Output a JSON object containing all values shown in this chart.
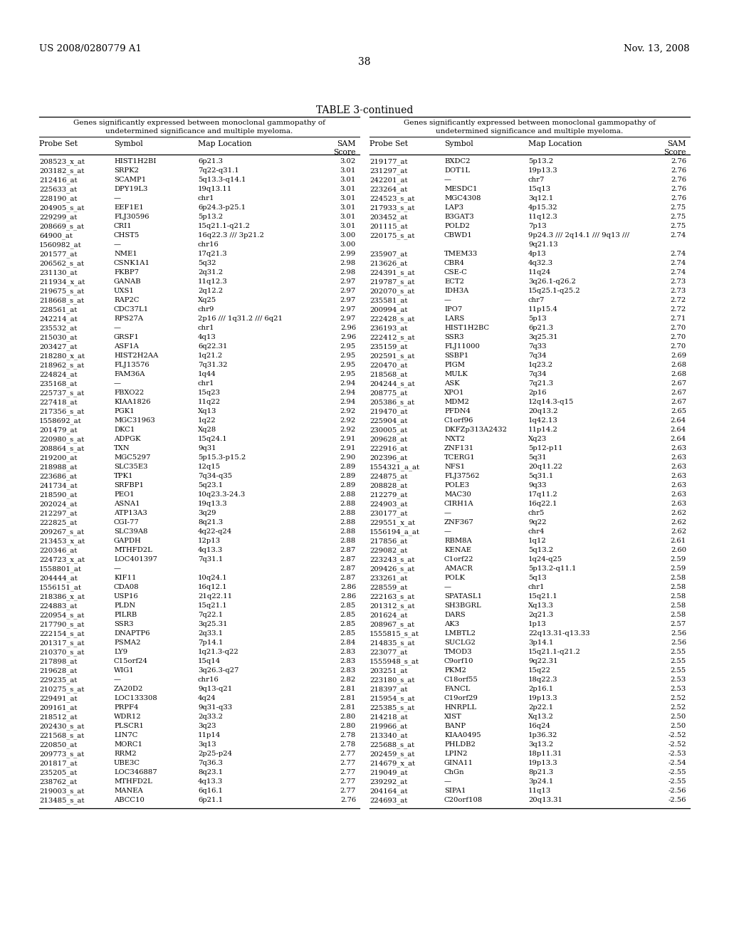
{
  "header_left": "US 2008/0280779 A1",
  "header_right": "Nov. 13, 2008",
  "page_number": "38",
  "table_title": "TABLE 3-continued",
  "col_headers": [
    "Probe Set",
    "Symbol",
    "Map Location",
    "SAM\nScore"
  ],
  "left_subtitle_line1": "Genes significantly expressed between monoclonal gammopathy of",
  "left_subtitle_line2": "undetermined significance and multiple myeloma.",
  "right_subtitle_line1": "Genes significantly expressed between monoclonal gammopathy of",
  "right_subtitle_line2": "undetermined significance and multiple myeloma.",
  "left_data": [
    [
      "208523_x_at",
      "HIST1H2BI",
      "6p21.3",
      "3.02"
    ],
    [
      "203182_s_at",
      "SRPK2",
      "7q22-q31.1",
      "3.01"
    ],
    [
      "212416_at",
      "SCAMP1",
      "5q13.3-q14.1",
      "3.01"
    ],
    [
      "225633_at",
      "DPY19L3",
      "19q13.11",
      "3.01"
    ],
    [
      "228190_at",
      "—",
      "chr1",
      "3.01"
    ],
    [
      "204905_s_at",
      "EEF1E1",
      "6p24.3-p25.1",
      "3.01"
    ],
    [
      "229299_at",
      "FLJ30596",
      "5p13.2",
      "3.01"
    ],
    [
      "208669_s_at",
      "CRI1",
      "15q21.1-q21.2",
      "3.01"
    ],
    [
      "64900_at",
      "CHST5",
      "16q22.3 /// 3p21.2",
      "3.00"
    ],
    [
      "1560982_at",
      "—",
      "chr16",
      "3.00"
    ],
    [
      "201577_at",
      "NME1",
      "17q21.3",
      "2.99"
    ],
    [
      "206562_s_at",
      "CSNK1A1",
      "5q32",
      "2.98"
    ],
    [
      "231130_at",
      "FKBP7",
      "2q31.2",
      "2.98"
    ],
    [
      "211934_x_at",
      "GANAB",
      "11q12.3",
      "2.97"
    ],
    [
      "219675_s_at",
      "UXS1",
      "2q12.2",
      "2.97"
    ],
    [
      "218668_s_at",
      "RAP2C",
      "Xq25",
      "2.97"
    ],
    [
      "228561_at",
      "CDC37L1",
      "chr9",
      "2.97"
    ],
    [
      "242214_at",
      "RPS27A",
      "2p16 /// 1q31.2 /// 6q21",
      "2.97"
    ],
    [
      "235532_at",
      "—",
      "chr1",
      "2.96"
    ],
    [
      "215030_at",
      "GRSF1",
      "4q13",
      "2.96"
    ],
    [
      "203427_at",
      "ASF1A",
      "6q22.31",
      "2.95"
    ],
    [
      "218280_x_at",
      "HIST2H2AA",
      "1q21.2",
      "2.95"
    ],
    [
      "218962_s_at",
      "FLJ13576",
      "7q31.32",
      "2.95"
    ],
    [
      "224824_at",
      "FAM36A",
      "1q44",
      "2.95"
    ],
    [
      "235168_at",
      "—",
      "chr1",
      "2.94"
    ],
    [
      "225737_s_at",
      "FBXO22",
      "15q23",
      "2.94"
    ],
    [
      "227418_at",
      "KIAA1826",
      "11q22",
      "2.94"
    ],
    [
      "217356_s_at",
      "PGK1",
      "Xq13",
      "2.92"
    ],
    [
      "1558692_at",
      "MGC31963",
      "1q22",
      "2.92"
    ],
    [
      "201479_at",
      "DKC1",
      "Xq28",
      "2.92"
    ],
    [
      "220980_s_at",
      "ADPGK",
      "15q24.1",
      "2.91"
    ],
    [
      "208864_s_at",
      "TXN",
      "9q31",
      "2.91"
    ],
    [
      "219200_at",
      "MGC5297",
      "5p15.3-p15.2",
      "2.90"
    ],
    [
      "218988_at",
      "SLC35E3",
      "12q15",
      "2.89"
    ],
    [
      "223686_at",
      "TPK1",
      "7q34-q35",
      "2.89"
    ],
    [
      "241734_at",
      "SRFBP1",
      "5q23.1",
      "2.89"
    ],
    [
      "218590_at",
      "PEO1",
      "10q23.3-24.3",
      "2.88"
    ],
    [
      "202024_at",
      "ASNA1",
      "19q13.3",
      "2.88"
    ],
    [
      "212297_at",
      "ATP13A3",
      "3q29",
      "2.88"
    ],
    [
      "222825_at",
      "CGI-77",
      "8q21.3",
      "2.88"
    ],
    [
      "209267_s_at",
      "SLC39A8",
      "4q22-q24",
      "2.88"
    ],
    [
      "213453_x_at",
      "GAPDH",
      "12p13",
      "2.88"
    ],
    [
      "220346_at",
      "MTHFD2L",
      "4q13.3",
      "2.87"
    ],
    [
      "224723_x_at",
      "LOC401397",
      "7q31.1",
      "2.87"
    ],
    [
      "1558801_at",
      "—",
      "",
      "2.87"
    ],
    [
      "204444_at",
      "KIF11",
      "10q24.1",
      "2.87"
    ],
    [
      "1556151_at",
      "CDA08",
      "16q12.1",
      "2.86"
    ],
    [
      "218386_x_at",
      "USP16",
      "21q22.11",
      "2.86"
    ],
    [
      "224883_at",
      "PLDN",
      "15q21.1",
      "2.85"
    ],
    [
      "220954_s_at",
      "PILRB",
      "7q22.1",
      "2.85"
    ],
    [
      "217790_s_at",
      "SSR3",
      "3q25.31",
      "2.85"
    ],
    [
      "222154_s_at",
      "DNAPTP6",
      "2q33.1",
      "2.85"
    ],
    [
      "201317_s_at",
      "PSMA2",
      "7p14.1",
      "2.84"
    ],
    [
      "210370_s_at",
      "LY9",
      "1q21.3-q22",
      "2.83"
    ],
    [
      "217898_at",
      "C15orf24",
      "15q14",
      "2.83"
    ],
    [
      "219628_at",
      "WIG1",
      "3q26.3-q27",
      "2.83"
    ],
    [
      "229235_at",
      "—",
      "chr16",
      "2.82"
    ],
    [
      "210275_s_at",
      "ZA20D2",
      "9q13-q21",
      "2.81"
    ],
    [
      "229491_at",
      "LOC133308",
      "4q24",
      "2.81"
    ],
    [
      "209161_at",
      "PRPF4",
      "9q31-q33",
      "2.81"
    ],
    [
      "218512_at",
      "WDR12",
      "2q33.2",
      "2.80"
    ],
    [
      "202430_s_at",
      "PLSCR1",
      "3q23",
      "2.80"
    ],
    [
      "221568_s_at",
      "LIN7C",
      "11p14",
      "2.78"
    ],
    [
      "220850_at",
      "MORC1",
      "3q13",
      "2.78"
    ],
    [
      "209773_s_at",
      "RRM2",
      "2p25-p24",
      "2.77"
    ],
    [
      "201817_at",
      "UBE3C",
      "7q36.3",
      "2.77"
    ],
    [
      "235205_at",
      "LOC346887",
      "8q23.1",
      "2.77"
    ],
    [
      "238762_at",
      "MTHFD2L",
      "4q13.3",
      "2.77"
    ],
    [
      "219003_s_at",
      "MANEA",
      "6q16.1",
      "2.77"
    ],
    [
      "213485_s_at",
      "ABCC10",
      "6p21.1",
      "2.76"
    ]
  ],
  "right_data": [
    [
      "219177_at",
      "BXDC2",
      "5p13.2",
      "2.76"
    ],
    [
      "231297_at",
      "DOT1L",
      "19p13.3",
      "2.76"
    ],
    [
      "242201_at",
      "—",
      "chr7",
      "2.76"
    ],
    [
      "223264_at",
      "MESDC1",
      "15q13",
      "2.76"
    ],
    [
      "224523_s_at",
      "MGC4308",
      "3q12.1",
      "2.76"
    ],
    [
      "217933_s_at",
      "LAP3",
      "4p15.32",
      "2.75"
    ],
    [
      "203452_at",
      "B3GAT3",
      "11q12.3",
      "2.75"
    ],
    [
      "201115_at",
      "POLD2",
      "7p13",
      "2.75"
    ],
    [
      "220175_s_at",
      "CBWD1",
      "9p24.3 /// 2q14.1 /// 9q13 ///",
      "2.74"
    ],
    [
      "",
      "",
      "9q21.13",
      ""
    ],
    [
      "235907_at",
      "TMEM33",
      "4p13",
      "2.74"
    ],
    [
      "213626_at",
      "CBR4",
      "4q32.3",
      "2.74"
    ],
    [
      "224391_s_at",
      "CSE-C",
      "11q24",
      "2.74"
    ],
    [
      "219787_s_at",
      "ECT2",
      "3q26.1-q26.2",
      "2.73"
    ],
    [
      "202070_s_at",
      "IDH3A",
      "15q25.1-q25.2",
      "2.73"
    ],
    [
      "235581_at",
      "—",
      "chr7",
      "2.72"
    ],
    [
      "200994_at",
      "IPO7",
      "11p15.4",
      "2.72"
    ],
    [
      "222428_s_at",
      "LARS",
      "5p13",
      "2.71"
    ],
    [
      "236193_at",
      "HIST1H2BC",
      "6p21.3",
      "2.70"
    ],
    [
      "222412_s_at",
      "SSR3",
      "3q25.31",
      "2.70"
    ],
    [
      "235159_at",
      "FLJ11000",
      "7q33",
      "2.70"
    ],
    [
      "202591_s_at",
      "SSBP1",
      "7q34",
      "2.69"
    ],
    [
      "220470_at",
      "PIGM",
      "1q23.2",
      "2.68"
    ],
    [
      "218568_at",
      "MULK",
      "7q34",
      "2.68"
    ],
    [
      "204244_s_at",
      "ASK",
      "7q21.3",
      "2.67"
    ],
    [
      "208775_at",
      "XPO1",
      "2p16",
      "2.67"
    ],
    [
      "205386_s_at",
      "MDM2",
      "12q14.3-q15",
      "2.67"
    ],
    [
      "219470_at",
      "PFDN4",
      "20q13.2",
      "2.65"
    ],
    [
      "225904_at",
      "C1orf96",
      "1q42.13",
      "2.64"
    ],
    [
      "230005_at",
      "DKFZp313A2432",
      "11p14.2",
      "2.64"
    ],
    [
      "209628_at",
      "NXT2",
      "Xq23",
      "2.64"
    ],
    [
      "222916_at",
      "ZNF131",
      "5p12-p11",
      "2.63"
    ],
    [
      "202396_at",
      "TCERG1",
      "5q31",
      "2.63"
    ],
    [
      "1554321_a_at",
      "NFS1",
      "20q11.22",
      "2.63"
    ],
    [
      "224875_at",
      "FLJ37562",
      "5q31.1",
      "2.63"
    ],
    [
      "208828_at",
      "POLE3",
      "9q33",
      "2.63"
    ],
    [
      "212279_at",
      "MAC30",
      "17q11.2",
      "2.63"
    ],
    [
      "224903_at",
      "CIRH1A",
      "16q22.1",
      "2.63"
    ],
    [
      "230177_at",
      "—",
      "chr5",
      "2.62"
    ],
    [
      "229551_x_at",
      "ZNF367",
      "9q22",
      "2.62"
    ],
    [
      "1556194_a_at",
      "—",
      "chr4",
      "2.62"
    ],
    [
      "217856_at",
      "RBM8A",
      "1q12",
      "2.61"
    ],
    [
      "229082_at",
      "KENAE",
      "5q13.2",
      "2.60"
    ],
    [
      "223243_s_at",
      "C1orf22",
      "1q24-q25",
      "2.59"
    ],
    [
      "209426_s_at",
      "AMACR",
      "5p13.2-q11.1",
      "2.59"
    ],
    [
      "233261_at",
      "POLK",
      "5q13",
      "2.58"
    ],
    [
      "228559_at",
      "—",
      "chr1",
      "2.58"
    ],
    [
      "222163_s_at",
      "SPATASL1",
      "15q21.1",
      "2.58"
    ],
    [
      "201312_s_at",
      "SH3BGRL",
      "Xq13.3",
      "2.58"
    ],
    [
      "201624_at",
      "DARS",
      "2q21.3",
      "2.58"
    ],
    [
      "208967_s_at",
      "AK3",
      "1p13",
      "2.57"
    ],
    [
      "1555815_s_at",
      "LMBTL2",
      "22q13.31-q13.33",
      "2.56"
    ],
    [
      "214835_s_at",
      "SUCLG2",
      "3p14.1",
      "2.56"
    ],
    [
      "223077_at",
      "TMOD3",
      "15q21.1-q21.2",
      "2.55"
    ],
    [
      "1555948_s_at",
      "C9orf10",
      "9q22.31",
      "2.55"
    ],
    [
      "203251_at",
      "PKM2",
      "15q22",
      "2.55"
    ],
    [
      "223180_s_at",
      "C18orf55",
      "18q22.3",
      "2.53"
    ],
    [
      "218397_at",
      "FANCL",
      "2p16.1",
      "2.53"
    ],
    [
      "215954_s_at",
      "C19orf29",
      "19p13.3",
      "2.52"
    ],
    [
      "225385_s_at",
      "HNRPLL",
      "2p22.1",
      "2.52"
    ],
    [
      "214218_at",
      "XIST",
      "Xq13.2",
      "2.50"
    ],
    [
      "219966_at",
      "BANP",
      "16q24",
      "2.50"
    ],
    [
      "213340_at",
      "KIAA0495",
      "1p36.32",
      "-2.52"
    ],
    [
      "225688_s_at",
      "PHLDB2",
      "3q13.2",
      "-2.52"
    ],
    [
      "202459_s_at",
      "LPIN2",
      "18p11.31",
      "-2.53"
    ],
    [
      "214679_x_at",
      "GINA11",
      "19p13.3",
      "-2.54"
    ],
    [
      "219049_at",
      "ChGn",
      "8p21.3",
      "-2.55"
    ],
    [
      "239292_at",
      "—",
      "3p24.1",
      "-2.55"
    ],
    [
      "204164_at",
      "SIPA1",
      "11q13",
      "-2.56"
    ],
    [
      "224693_at",
      "C20orf108",
      "20q13.31",
      "-2.56"
    ]
  ],
  "bg_color": "#ffffff",
  "text_color": "#000000"
}
